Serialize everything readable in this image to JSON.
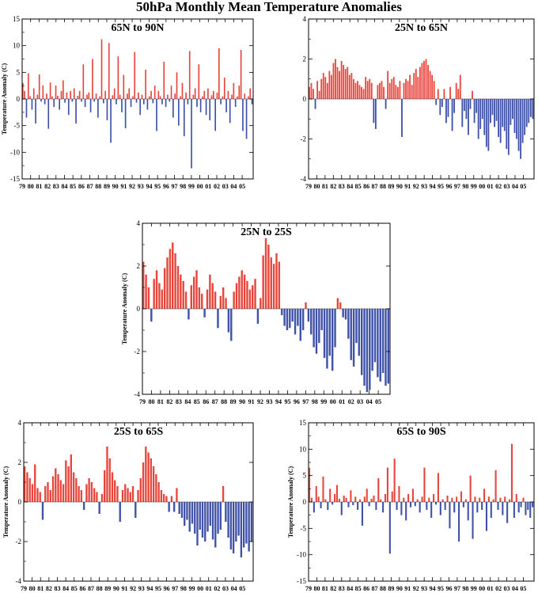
{
  "title": "50hPa Monthly Mean Temperature Anomalies",
  "colors": {
    "positive": "#e8463c",
    "negative": "#3f52a8",
    "frame": "#000000"
  },
  "chart_data": [
    {
      "type": "bar",
      "title": "65N to 90N",
      "ylabel": "Temperature Anomaly (C)",
      "xlabel": "",
      "ylim": [
        -15,
        15
      ],
      "yticks": [
        -15,
        -10,
        -5,
        0,
        5,
        10,
        15
      ],
      "x_start": 1979,
      "x_end": 2006.3,
      "xtick_labels": [
        "79",
        "80",
        "81",
        "82",
        "83",
        "84",
        "85",
        "86",
        "87",
        "88",
        "89",
        "90",
        "91",
        "92",
        "93",
        "94",
        "95",
        "96",
        "97",
        "98",
        "99",
        "00",
        "01",
        "02",
        "03",
        "04",
        "05"
      ],
      "grid": false,
      "series": [
        {
          "values": [
            3.0,
            1.5,
            -3.5,
            4.8,
            0.5,
            -2.0,
            2.0,
            -4.6,
            0.8,
            4.6,
            -0.5,
            2.5,
            -1.0,
            1.0,
            -5.6,
            3.1,
            0.5,
            -1.5,
            2.5,
            0.6,
            -2.0,
            1.5,
            3.5,
            -0.7,
            1.2,
            -3.0,
            1.5,
            -0.5,
            2.0,
            -4.6,
            0.6,
            1.5,
            -0.5,
            6.5,
            -1.5,
            0.8,
            1.2,
            -2.5,
            7.5,
            -0.5,
            1.0,
            -3.5,
            0.5,
            11.2,
            -0.8,
            1.5,
            -4.0,
            10.5,
            -8.2,
            0.7,
            2.0,
            -1.0,
            8.0,
            0.8,
            -2.5,
            4.5,
            -5.5,
            1.0,
            2.0,
            -1.5,
            0.5,
            8.8,
            -0.7,
            1.2,
            -3.0,
            0.8,
            -1.0,
            5.5,
            -2.0,
            0.5,
            1.5,
            -0.8,
            2.5,
            -6.0,
            1.5,
            0.5,
            -1.0,
            7.0,
            -1.5,
            0.8,
            -0.5,
            2.5,
            -3.5,
            1.0,
            5.0,
            -5.0,
            0.5,
            3.0,
            -7.0,
            1.2,
            -1.0,
            9.0,
            -13.0,
            0.8,
            2.0,
            -1.5,
            6.5,
            -2.5,
            0.5,
            1.5,
            -3.0,
            2.0,
            -4.0,
            0.7,
            1.5,
            -6.0,
            1.2,
            9.5,
            -1.0,
            0.5,
            4.0,
            -2.5,
            1.5,
            -4.5,
            0.8,
            3.0,
            -1.5,
            0.5,
            2.5,
            9.2,
            -6.0,
            1.0,
            -7.5,
            0.5,
            2.0,
            -1.0
          ]
        }
      ]
    },
    {
      "type": "bar",
      "title": "25N to 65N",
      "ylabel": "",
      "xlabel": "",
      "ylim": [
        -4,
        4
      ],
      "yticks": [
        -4,
        -2,
        0,
        2,
        4
      ],
      "x_start": 1979,
      "x_end": 2006.3,
      "xtick_labels": [
        "79",
        "80",
        "81",
        "82",
        "83",
        "84",
        "85",
        "86",
        "87",
        "88",
        "89",
        "90",
        "91",
        "92",
        "93",
        "94",
        "95",
        "96",
        "97",
        "98",
        "99",
        "00",
        "01",
        "02",
        "03",
        "04",
        "05"
      ],
      "grid": false,
      "series": [
        {
          "values": [
            0.6,
            0.8,
            0.5,
            -0.5,
            0.9,
            0.4,
            1.0,
            1.3,
            1.1,
            0.8,
            1.4,
            1.2,
            1.8,
            2.0,
            1.6,
            1.4,
            1.9,
            1.7,
            1.5,
            1.6,
            1.2,
            1.3,
            1.0,
            0.8,
            0.9,
            0.7,
            0.6,
            0.5,
            1.1,
            0.9,
            1.0,
            0.8,
            -1.2,
            -1.5,
            0.7,
            0.8,
            0.9,
            0.6,
            -0.5,
            1.4,
            0.8,
            1.0,
            1.1,
            0.7,
            0.6,
            0.9,
            -1.9,
            0.8,
            1.0,
            0.9,
            1.2,
            0.7,
            1.3,
            1.5,
            1.1,
            1.6,
            1.8,
            1.9,
            2.0,
            1.7,
            1.4,
            1.2,
            0.9,
            -0.3,
            0.5,
            -0.8,
            -0.4,
            0.5,
            -1.2,
            -0.9,
            0.6,
            -1.6,
            -0.7,
            0.8,
            0.5,
            1.2,
            -1.4,
            -0.6,
            -1.0,
            -1.8,
            -0.5,
            0.4,
            -1.2,
            -0.7,
            -2.0,
            -1.5,
            -1.0,
            -1.8,
            -2.4,
            -2.6,
            -1.2,
            -0.8,
            -1.4,
            -1.1,
            -1.9,
            -2.2,
            -1.4,
            -1.6,
            -2.5,
            -2.8,
            -1.3,
            -1.0,
            -1.7,
            -2.0,
            -2.6,
            -3.0,
            -2.2,
            -1.8,
            -1.4,
            -1.2,
            -0.9,
            -1.0
          ]
        }
      ]
    },
    {
      "type": "bar",
      "title": "25N to 25S",
      "ylabel": "Temperature Anomaly (C)",
      "xlabel": "",
      "ylim": [
        -4,
        4
      ],
      "yticks": [
        -4,
        -2,
        0,
        2,
        4
      ],
      "x_start": 1979,
      "x_end": 2006.3,
      "xtick_labels": [
        "79",
        "80",
        "81",
        "82",
        "83",
        "84",
        "85",
        "86",
        "87",
        "88",
        "89",
        "90",
        "91",
        "92",
        "93",
        "94",
        "95",
        "96",
        "97",
        "98",
        "99",
        "00",
        "01",
        "02",
        "03",
        "04",
        "05"
      ],
      "grid": false,
      "series": [
        {
          "values": [
            2.2,
            1.6,
            1.0,
            -0.6,
            1.4,
            1.8,
            1.2,
            0.9,
            1.9,
            2.4,
            2.8,
            3.1,
            2.6,
            2.0,
            1.6,
            1.3,
            0.8,
            -0.5,
            1.1,
            1.5,
            1.8,
            1.0,
            0.7,
            -0.4,
            0.9,
            1.6,
            1.2,
            0.8,
            -0.9,
            0.6,
            1.0,
            0.5,
            -1.1,
            -1.5,
            0.8,
            1.2,
            1.5,
            1.8,
            1.6,
            1.3,
            0.9,
            1.1,
            1.4,
            -0.7,
            0.5,
            2.5,
            3.3,
            3.0,
            2.4,
            2.1,
            2.6,
            2.2,
            -0.3,
            -0.8,
            -1.0,
            -0.9,
            -0.6,
            -1.2,
            -0.8,
            -1.5,
            -1.0,
            0.3,
            -0.6,
            -1.2,
            -1.8,
            -2.1,
            -1.6,
            -1.0,
            -2.3,
            -2.8,
            -2.2,
            -2.9,
            -1.8,
            0.5,
            0.3,
            -0.4,
            -0.5,
            -1.4,
            -2.4,
            -2.7,
            -1.6,
            -2.2,
            -3.1,
            -3.6,
            -3.9,
            -3.8,
            -2.9,
            -2.5,
            -3.2,
            -3.4,
            -3.0,
            -3.6,
            -3.5
          ]
        }
      ]
    },
    {
      "type": "bar",
      "title": "25S to 65S",
      "ylabel": "Temperature Anomaly (C)",
      "xlabel": "",
      "ylim": [
        -4,
        4
      ],
      "yticks": [
        -4,
        -2,
        0,
        2,
        4
      ],
      "x_start": 1979,
      "x_end": 2006.3,
      "xtick_labels": [
        "79",
        "80",
        "81",
        "82",
        "83",
        "84",
        "85",
        "86",
        "87",
        "88",
        "89",
        "90",
        "91",
        "92",
        "93",
        "94",
        "95",
        "96",
        "97",
        "98",
        "99",
        "00",
        "01",
        "02",
        "03",
        "04",
        "05"
      ],
      "grid": false,
      "series": [
        {
          "values": [
            1.8,
            1.5,
            1.2,
            0.9,
            1.9,
            0.7,
            0.5,
            -0.9,
            0.8,
            1.0,
            0.6,
            1.3,
            1.7,
            1.4,
            1.1,
            0.9,
            2.1,
            1.8,
            2.4,
            1.5,
            1.2,
            0.8,
            0.6,
            -0.4,
            0.9,
            1.2,
            1.0,
            0.7,
            0.5,
            -0.6,
            0.4,
            1.6,
            2.8,
            2.2,
            1.5,
            1.1,
            0.8,
            -1.0,
            0.6,
            0.9,
            0.7,
            0.5,
            0.8,
            -0.8,
            0.6,
            1.2,
            2.0,
            2.8,
            2.5,
            2.2,
            1.8,
            1.4,
            1.0,
            0.6,
            0.4,
            0.3,
            -0.5,
            0.3,
            -0.5,
            0.7,
            -0.6,
            -0.8,
            -1.2,
            -0.9,
            -1.5,
            -1.1,
            -1.6,
            -2.2,
            -1.4,
            -1.8,
            -2.0,
            -1.5,
            -1.2,
            -1.9,
            -2.3,
            -1.6,
            -1.4,
            0.8,
            -1.0,
            -1.8,
            -2.4,
            -2.6,
            -2.0,
            -1.7,
            -2.8,
            -2.3,
            -2.1,
            -2.5,
            -2.0
          ]
        }
      ]
    },
    {
      "type": "bar",
      "title": "65S to 90S",
      "ylabel": "Temperature Anomaly (C)",
      "xlabel": "",
      "ylim": [
        -15,
        15
      ],
      "yticks": [
        -15,
        -10,
        -5,
        0,
        5,
        10,
        15
      ],
      "x_start": 1979,
      "x_end": 2006.3,
      "xtick_labels": [
        "79",
        "80",
        "81",
        "82",
        "83",
        "84",
        "85",
        "86",
        "87",
        "88",
        "89",
        "90",
        "91",
        "92",
        "93",
        "94",
        "95",
        "96",
        "97",
        "98",
        "99",
        "00",
        "01",
        "02",
        "03",
        "04",
        "05"
      ],
      "grid": false,
      "series": [
        {
          "values": [
            6.5,
            0.8,
            -2.0,
            3.0,
            1.0,
            -1.2,
            4.8,
            0.5,
            -1.5,
            2.5,
            -0.5,
            1.5,
            3.2,
            0.6,
            -2.5,
            1.2,
            0.8,
            -1.0,
            2.2,
            -0.6,
            1.0,
            -1.5,
            0.5,
            -4.5,
            1.0,
            2.5,
            -0.8,
            0.6,
            1.2,
            -1.5,
            4.5,
            0.5,
            -2.0,
            1.5,
            6.5,
            -9.8,
            2.0,
            8.2,
            -1.5,
            3.0,
            -2.5,
            0.8,
            -3.5,
            1.5,
            -1.0,
            2.5,
            -0.8,
            0.5,
            -2.0,
            1.0,
            6.5,
            -1.5,
            0.8,
            -3.0,
            1.5,
            -0.5,
            5.5,
            -2.5,
            0.5,
            -1.5,
            1.2,
            -5.0,
            0.8,
            -2.0,
            1.0,
            -7.5,
            2.0,
            -1.0,
            0.5,
            -3.5,
            5.0,
            -7.0,
            1.0,
            -2.0,
            0.8,
            -1.5,
            2.5,
            -5.5,
            1.0,
            -3.0,
            0.5,
            6.0,
            -1.5,
            0.8,
            -2.5,
            1.0,
            -4.0,
            0.5,
            11.0,
            -3.0,
            1.5,
            -2.0,
            -1.0,
            0.8,
            -2.5,
            -1.5,
            -3.0,
            -1.0
          ]
        }
      ]
    }
  ]
}
